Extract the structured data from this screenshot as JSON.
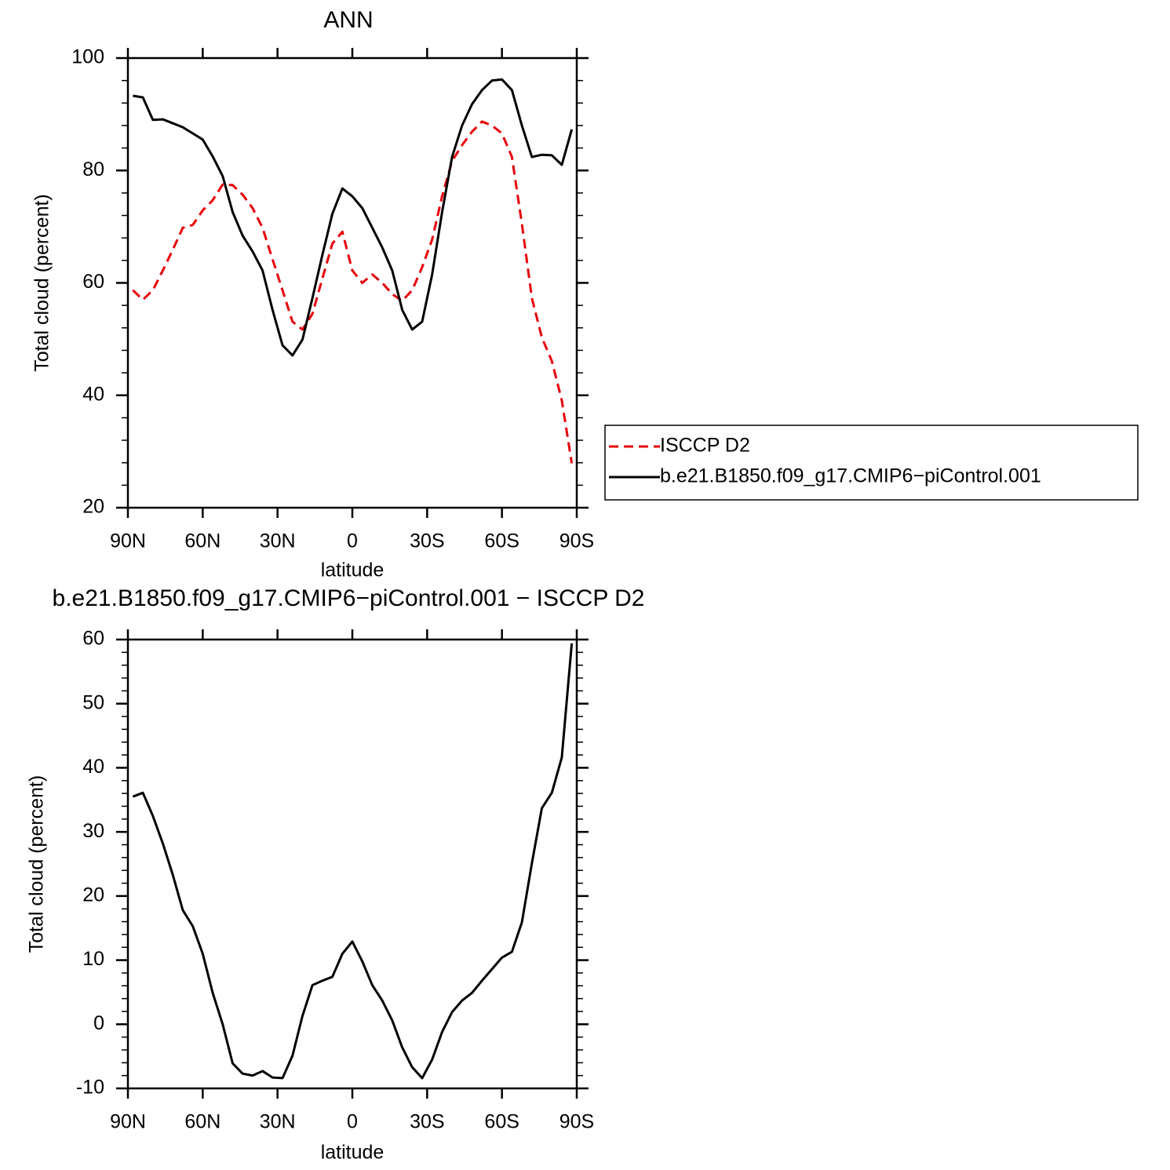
{
  "chart_data": [
    {
      "type": "line",
      "title": "ANN",
      "x_label": "latitude",
      "y_label": "Total cloud (percent)",
      "x": [
        88,
        84,
        80,
        76,
        72,
        68,
        64,
        60,
        56,
        52,
        48,
        44,
        40,
        36,
        32,
        28,
        24,
        20,
        16,
        12,
        8,
        4,
        0,
        -4,
        -8,
        -12,
        -16,
        -20,
        -24,
        -28,
        -32,
        -36,
        -40,
        -44,
        -48,
        -52,
        -56,
        -60,
        -64,
        -68,
        -72,
        -76,
        -80,
        -84,
        -88
      ],
      "series": [
        {
          "name": "ISCCP D2",
          "color": "#e8000b",
          "dashed": true,
          "values": [
            58.7,
            57,
            58.7,
            62.2,
            65.9,
            69.8,
            70.3,
            72.9,
            74.7,
            77.5,
            77.4,
            75.7,
            73.3,
            69.8,
            64.2,
            58.7,
            53.1,
            51.7,
            54.5,
            60.8,
            67,
            69.1,
            62.2,
            60,
            61.5,
            60,
            58,
            56.8,
            58.7,
            62.8,
            67.7,
            75.4,
            81.7,
            84.5,
            86.9,
            88.7,
            88,
            86.6,
            82.4,
            70.5,
            57.3,
            50.3,
            46.1,
            39.1,
            27.9
          ]
        },
        {
          "name": "b.e21.B1850.f09_g17.CMIP6−piControl.001",
          "color": "#000000",
          "dashed": false,
          "values": [
            93.3,
            93,
            89,
            89.1,
            88.4,
            87.7,
            86.6,
            85.5,
            82.5,
            79,
            72.6,
            68.4,
            65.6,
            62.2,
            55.2,
            48.9,
            47.1,
            49.9,
            57.3,
            65,
            72.3,
            76.8,
            75.4,
            73.3,
            69.8,
            66.3,
            62.2,
            55.2,
            51.7,
            53.1,
            61.5,
            72.6,
            82.4,
            88,
            91.8,
            94.3,
            96,
            96.2,
            94.3,
            88,
            82.4,
            82.8,
            82.7,
            81,
            87.3
          ]
        }
      ],
      "xlim": [
        90,
        -90
      ],
      "xticks": [
        {
          "value": 90,
          "label": "90N"
        },
        {
          "value": 60,
          "label": "60N"
        },
        {
          "value": 30,
          "label": "30N"
        },
        0,
        {
          "value": -30,
          "label": "30S"
        },
        {
          "value": -60,
          "label": "60S"
        },
        {
          "value": -90,
          "label": "90S"
        }
      ],
      "ylim": [
        20,
        100
      ],
      "yticks": [
        20,
        40,
        60,
        80,
        100
      ],
      "legend": "right"
    },
    {
      "type": "line",
      "title": "b.e21.B1850.f09_g17.CMIP6−piControl.001 − ISCCP D2",
      "x_label": "latitude",
      "y_label": "Total cloud (percent)",
      "x": [
        88,
        84,
        80,
        76,
        72,
        68,
        64,
        60,
        56,
        52,
        48,
        44,
        40,
        36,
        32,
        28,
        24,
        20,
        16,
        12,
        8,
        4,
        0,
        -4,
        -8,
        -12,
        -16,
        -20,
        -24,
        -28,
        -32,
        -36,
        -40,
        -44,
        -48,
        -52,
        -56,
        -60,
        -64,
        -68,
        -72,
        -76,
        -80,
        -84,
        -88
      ],
      "series": [
        {
          "color": "#000000",
          "dashed": false,
          "values": [
            35.5,
            36.1,
            32.5,
            28.2,
            23.3,
            17.8,
            15.3,
            11,
            4.9,
            0,
            -6.1,
            -7.7,
            -8,
            -7.3,
            -8.3,
            -8.4,
            -4.9,
            1.3,
            6.1,
            6.8,
            7.4,
            11,
            12.9,
            9.8,
            6.1,
            3.7,
            0.6,
            -3.6,
            -6.7,
            -8.4,
            -5.5,
            -1.2,
            1.9,
            3.7,
            4.9,
            6.8,
            8.6,
            10.4,
            11.3,
            15.9,
            25.1,
            33.7,
            36.1,
            41.6,
            59.4
          ]
        }
      ],
      "xlim": [
        90,
        -90
      ],
      "xticks": [
        {
          "value": 90,
          "label": "90N"
        },
        {
          "value": 60,
          "label": "60N"
        },
        {
          "value": 30,
          "label": "30N"
        },
        0,
        {
          "value": -30,
          "label": "30S"
        },
        {
          "value": -60,
          "label": "60S"
        },
        {
          "value": -90,
          "label": "90S"
        }
      ],
      "ylim": [
        -10,
        60
      ],
      "yticks": [
        -10,
        0,
        10,
        20,
        30,
        40,
        50,
        60
      ]
    }
  ]
}
